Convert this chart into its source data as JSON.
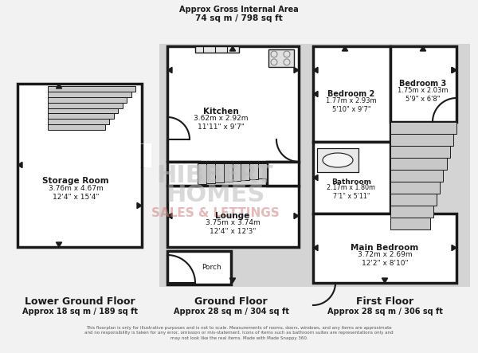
{
  "bg_color": "#f2f2f2",
  "wall_color": "#1a1a1a",
  "room_fill": "#ffffff",
  "gray_fill": "#d0d0d0",
  "title_top": "Approx Gross Internal Area",
  "title_top2": "74 sq m / 798 sq ft",
  "floor_labels": [
    "Lower Ground Floor",
    "Ground Floor",
    "First Floor"
  ],
  "floor_sublabels": [
    "Approx 18 sq m / 189 sq ft",
    "Approx 28 sq m / 304 sq ft",
    "Approx 28 sq m / 306 sq ft"
  ],
  "rooms": {
    "storage": {
      "label": "Storage Room",
      "sub": "3.76m x 4.67m\n12'4\" x 15'4\""
    },
    "kitchen": {
      "label": "Kitchen",
      "sub": "3.62m x 2.92m\n11'11\" x 9'7\""
    },
    "lounge": {
      "label": "Lounge",
      "sub": "3.75m x 3.74m\n12'4\" x 12'3\""
    },
    "porch": {
      "label": "Porch",
      "sub": ""
    },
    "bedroom2": {
      "label": "Bedroom 2",
      "sub": "1.77m x 2.93m\n5'10\" x 9'7\""
    },
    "bedroom3": {
      "label": "Bedroom 3",
      "sub": "1.75m x 2.03m\n5'9\" x 6'8\""
    },
    "bathroom": {
      "label": "Bathroom",
      "sub": "2.17m x 1.80m\n7'1\" x 5'11\""
    },
    "main_bedroom": {
      "label": "Main Bedroom",
      "sub": "3.72m x 2.69m\n12'2\" x 8'10\""
    }
  },
  "disclaimer": "This floorplan is only for illustrative purposes and is not to scale. Measurements of rooms, doors, windows, and any items are approximate\nand no responsibility is taken for any error, omission or mis-statement. Icons of items such as bathroom suites are representations only and\nmay not look like the real items. Made with Made Snappy 360."
}
